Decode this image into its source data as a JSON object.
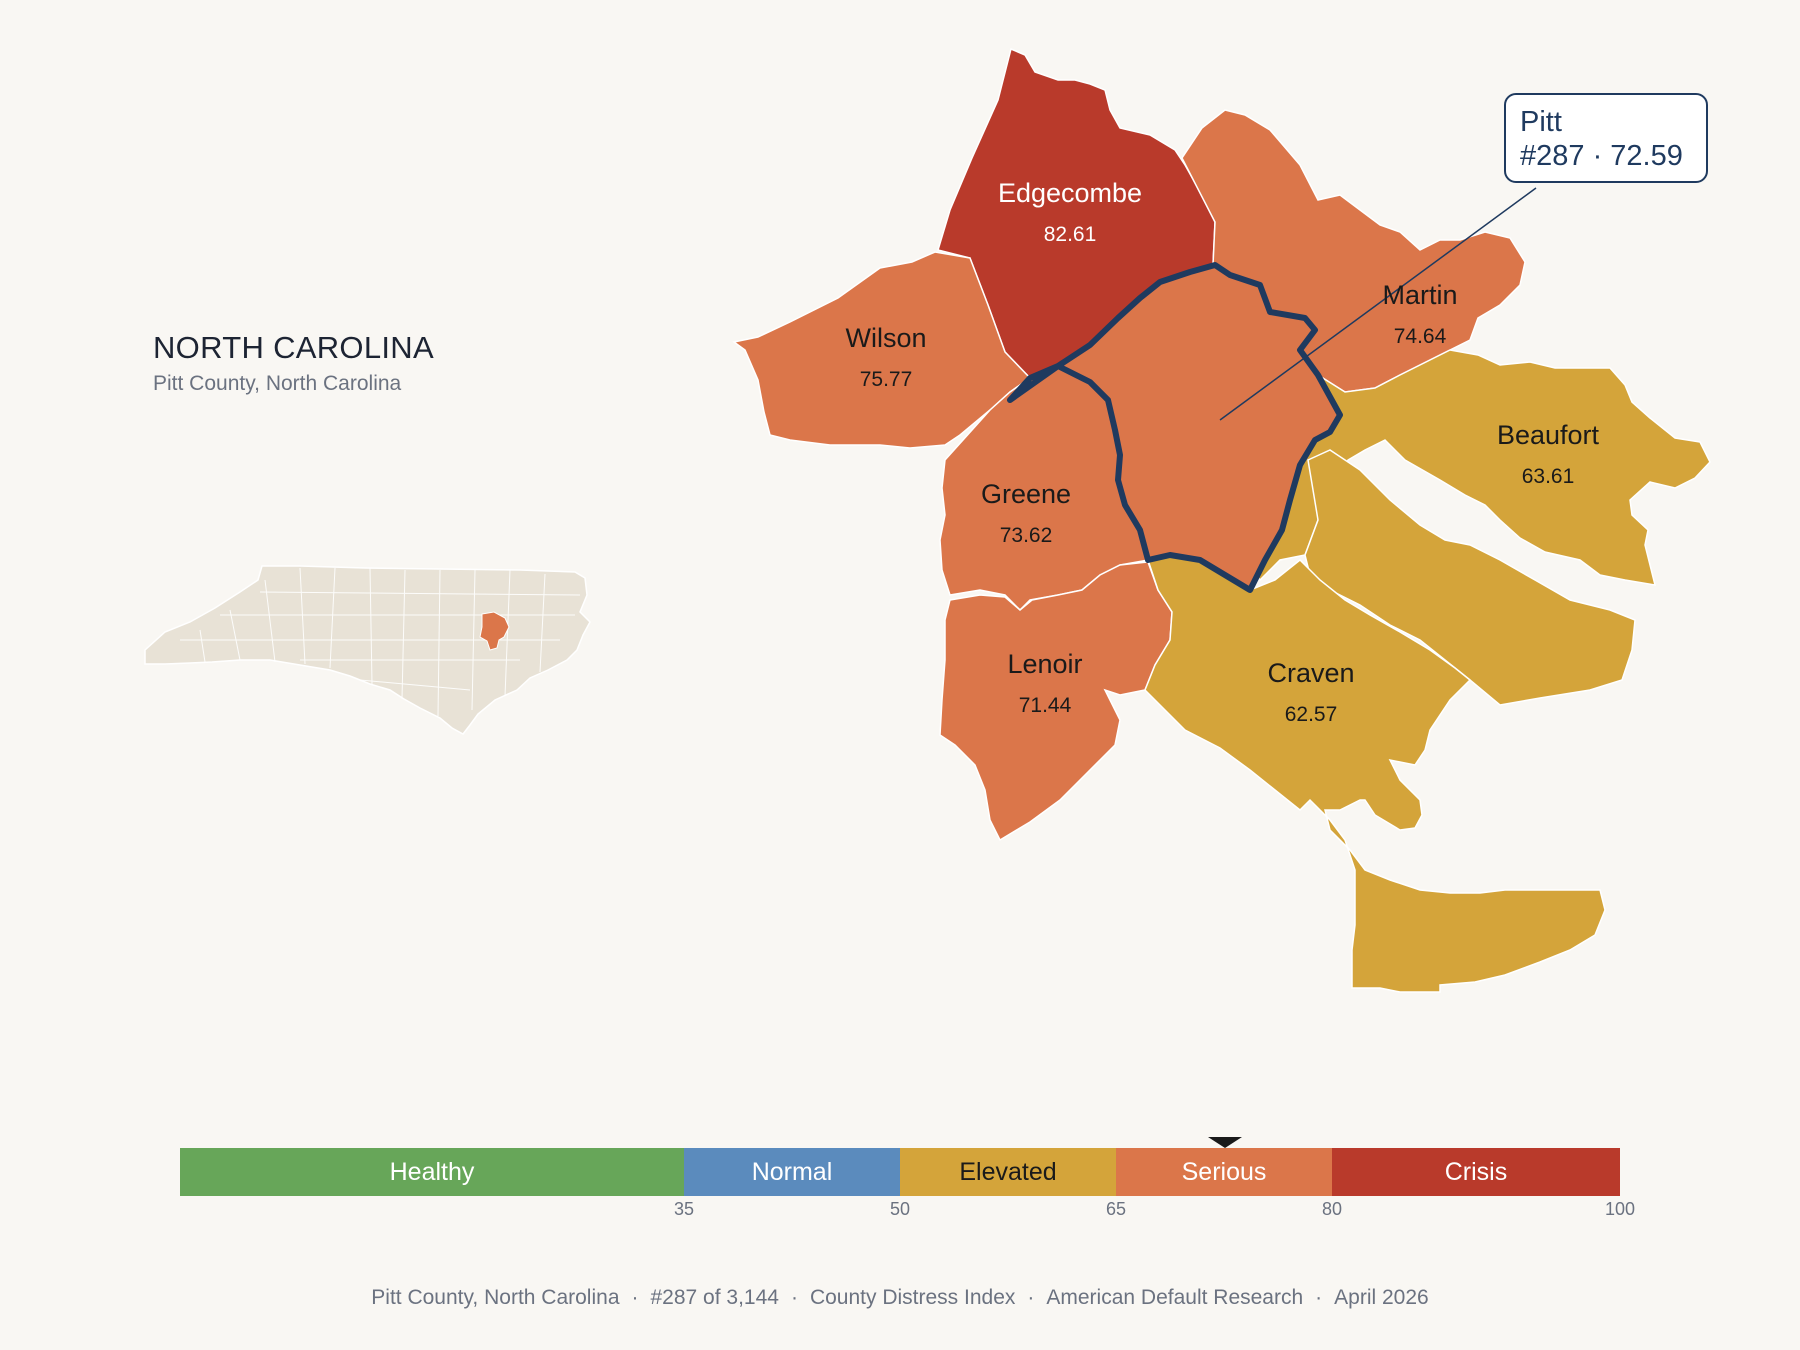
{
  "header": {
    "title": "NORTH CAROLINA",
    "subtitle": "Pitt County, North Carolina"
  },
  "callout": {
    "line1": "Pitt",
    "line2": "#287 · 72.59"
  },
  "counties": [
    {
      "id": "edgecombe",
      "name": "Edgecombe",
      "score": "82.61",
      "color": "#b93a2b",
      "light_text": true
    },
    {
      "id": "martin",
      "name": "Martin",
      "score": "74.64",
      "color": "#db764a",
      "light_text": false
    },
    {
      "id": "wilson",
      "name": "Wilson",
      "score": "75.77",
      "color": "#db764a",
      "light_text": false
    },
    {
      "id": "beaufort",
      "name": "Beaufort",
      "score": "63.61",
      "color": "#d4a43a",
      "light_text": false
    },
    {
      "id": "greene",
      "name": "Greene",
      "score": "73.62",
      "color": "#db764a",
      "light_text": false
    },
    {
      "id": "lenoir",
      "name": "Lenoir",
      "score": "71.44",
      "color": "#db764a",
      "light_text": false
    },
    {
      "id": "craven",
      "name": "Craven",
      "score": "62.57",
      "color": "#d4a43a",
      "light_text": false
    },
    {
      "id": "pitt",
      "name": "Pitt",
      "score": "72.59",
      "color": "#db764a",
      "light_text": false
    }
  ],
  "legend": {
    "segments": [
      {
        "label": "Healthy",
        "from": 0,
        "to": 35,
        "color": "#67a659"
      },
      {
        "label": "Normal",
        "from": 35,
        "to": 50,
        "color": "#5b8bbd"
      },
      {
        "label": "Elevated",
        "from": 50,
        "to": 65,
        "color": "#d4a43a"
      },
      {
        "label": "Serious",
        "from": 65,
        "to": 80,
        "color": "#db764a"
      },
      {
        "label": "Crisis",
        "from": 80,
        "to": 100,
        "color": "#b93a2b"
      }
    ],
    "ticks": [
      "35",
      "50",
      "65",
      "80",
      "100"
    ],
    "marker_value": 72.59
  },
  "footer": {
    "county": "Pitt County, North Carolina",
    "rank": "#287 of 3,144",
    "index": "County Distress Index",
    "source": "American Default Research",
    "date": "April 2026"
  },
  "colors": {
    "highlight_outline": "#1f3a5f",
    "state_fill": "#e8e2d6",
    "state_highlight": "#db764a"
  },
  "icons": {
    "legend_marker": "triangle-down-icon"
  }
}
